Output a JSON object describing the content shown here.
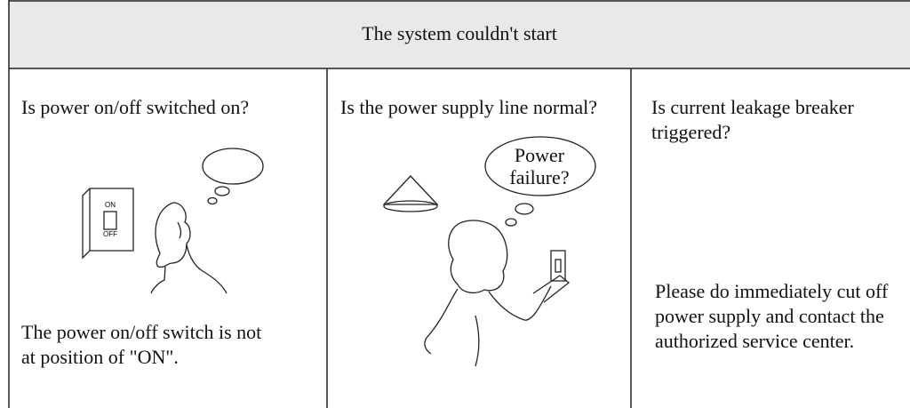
{
  "header": {
    "title": "The system couldn't start"
  },
  "columns": [
    {
      "question": "Is power on/off switched on?",
      "illustration": {
        "switch_labels": [
          "ON",
          "OFF"
        ]
      },
      "answer": "The power on/off switch is not at position of \"ON\"."
    },
    {
      "question": "Is the power supply line normal?",
      "illustration": {
        "thought": "Power failure?"
      }
    },
    {
      "question": "Is current leakage breaker triggered?",
      "answer": "Please do immediately cut off power supply and contact the authorized service center."
    }
  ]
}
